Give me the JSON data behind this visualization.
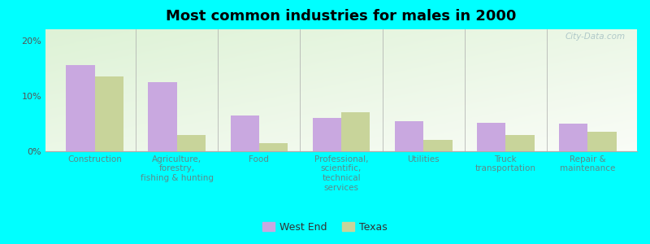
{
  "title": "Most common industries for males in 2000",
  "categories": [
    "Construction",
    "Agriculture,\nforestry,\nfishing & hunting",
    "Food",
    "Professional,\nscientific,\ntechnical\nservices",
    "Utilities",
    "Truck\ntransportation",
    "Repair &\nmaintenance"
  ],
  "west_end": [
    15.5,
    12.5,
    6.5,
    6.0,
    5.5,
    5.2,
    5.0
  ],
  "texas": [
    13.5,
    3.0,
    1.5,
    7.0,
    2.0,
    3.0,
    3.5
  ],
  "west_end_color": "#c9a8e0",
  "texas_color": "#c8d49a",
  "background_color": "#00ffff",
  "ylim": [
    0,
    22
  ],
  "yticks": [
    0,
    10,
    20
  ],
  "ytick_labels": [
    "0%",
    "10%",
    "20%"
  ],
  "legend_west_end": "West End",
  "legend_texas": "Texas",
  "bar_width": 0.35,
  "watermark": "City-Data.com"
}
